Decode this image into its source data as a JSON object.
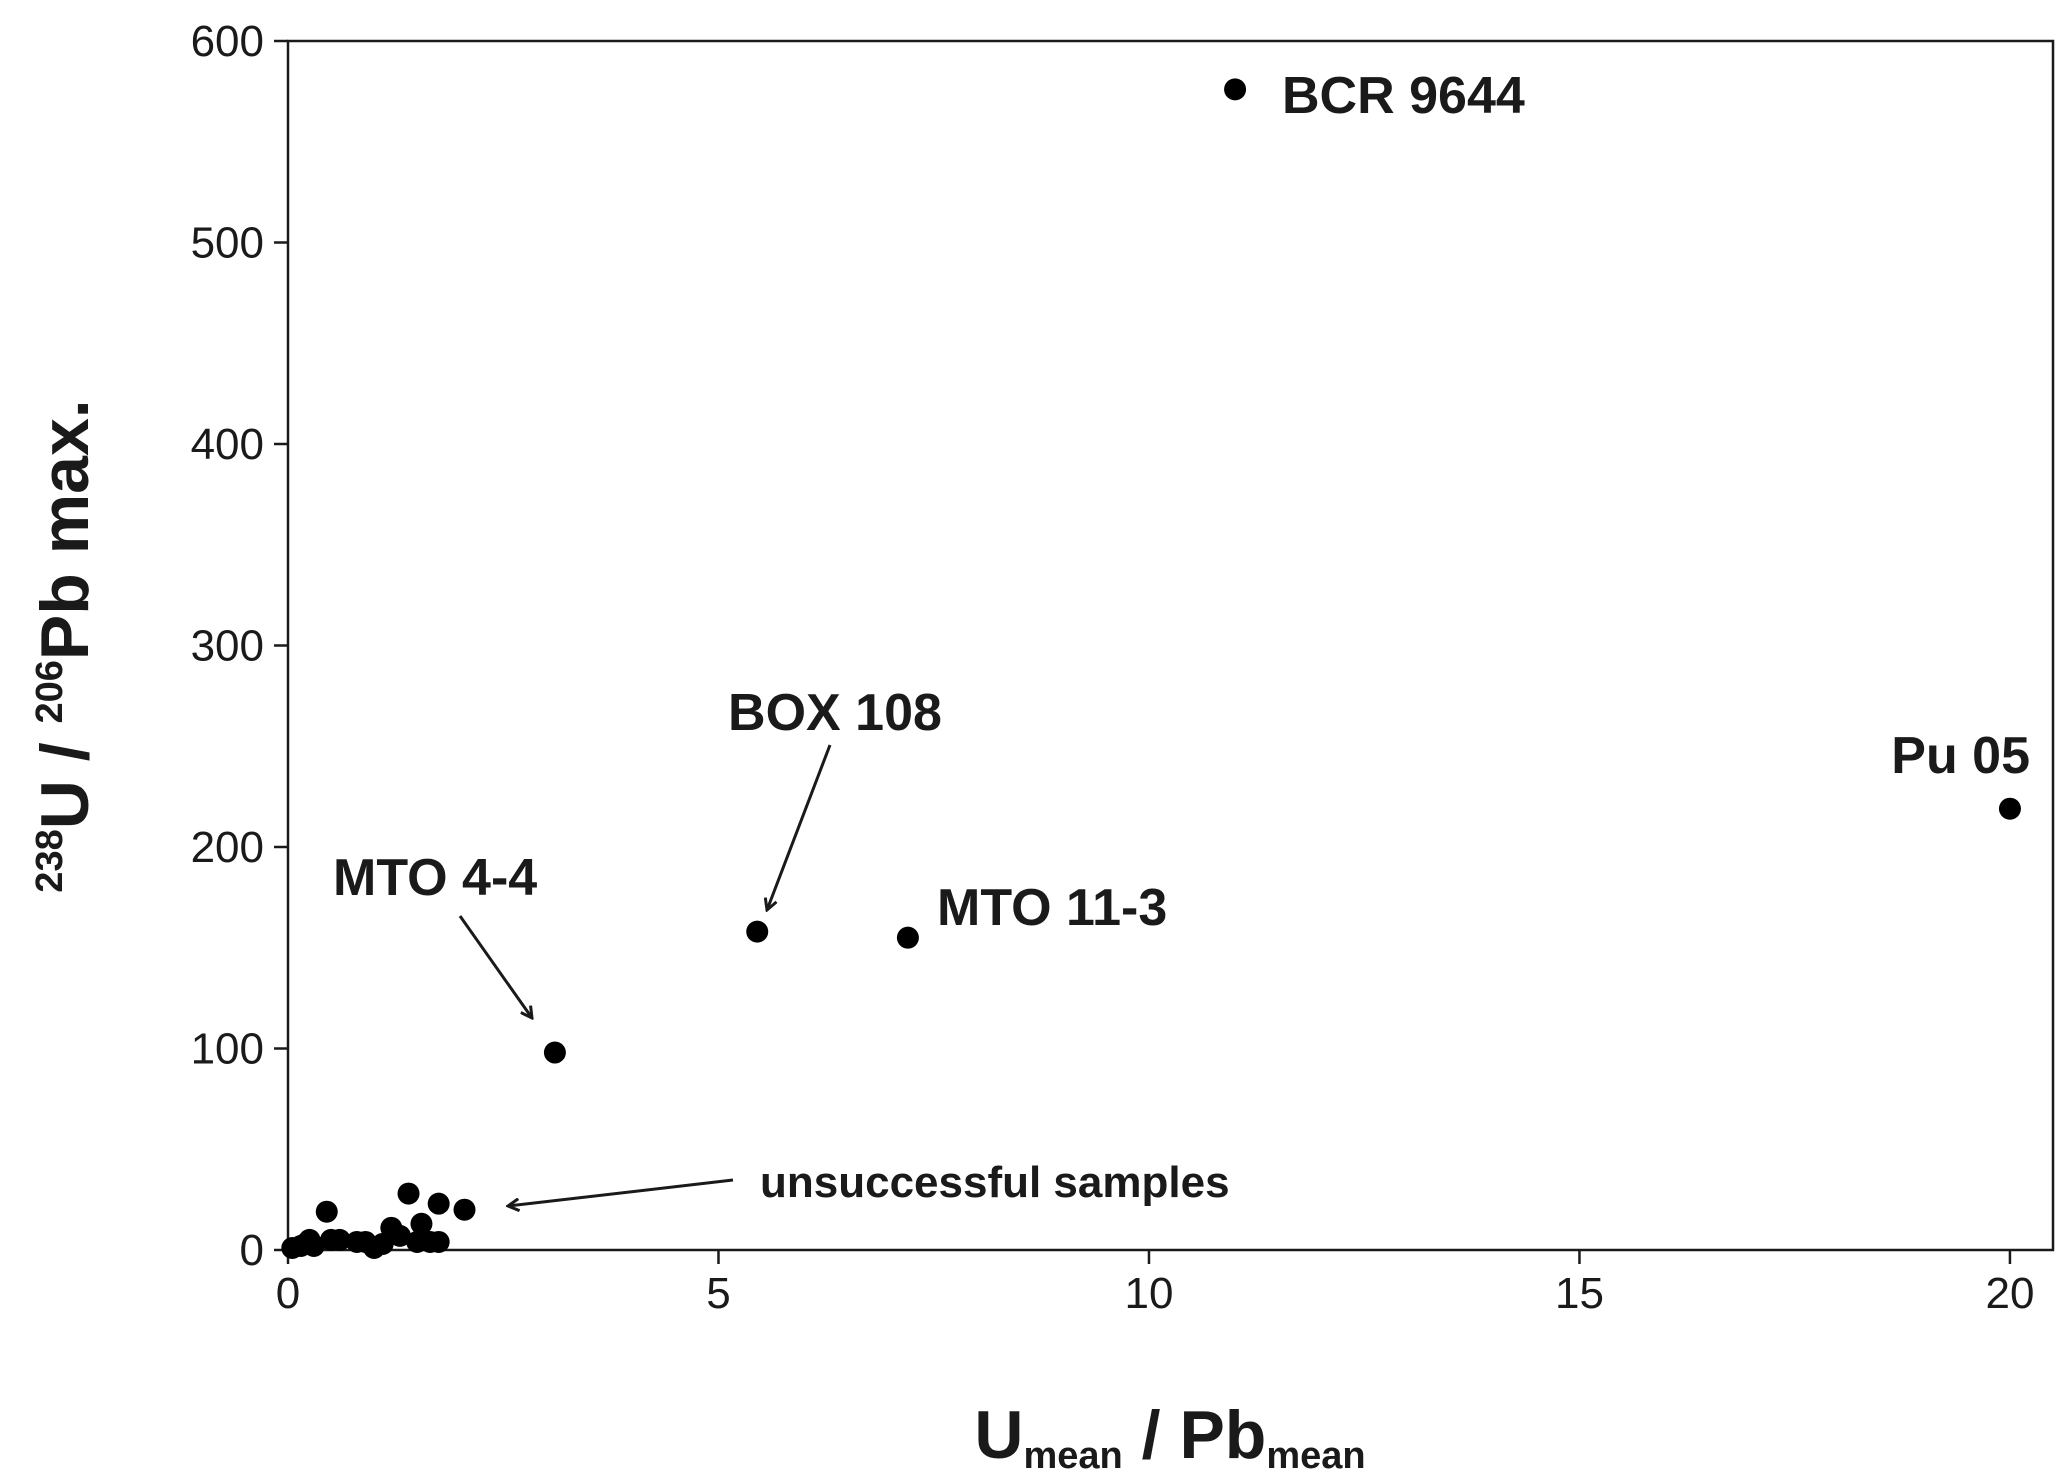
{
  "chart_data": {
    "type": "scatter",
    "xlabel": {
      "main1": "U",
      "sub1": "mean",
      "sep": " / ",
      "main2": "Pb",
      "sub2": "mean"
    },
    "ylabel": {
      "sup1": "238",
      "main1": "U / ",
      "sup2": "206",
      "main2": "Pb max."
    },
    "xlim": [
      0,
      20.5
    ],
    "ylim": [
      0,
      600
    ],
    "xticks": [
      "0",
      "5",
      "10",
      "15",
      "20"
    ],
    "yticks": [
      "0",
      "100",
      "200",
      "300",
      "400",
      "500",
      "600"
    ],
    "grid": false,
    "marker_color": "#000000",
    "points": [
      {
        "x": 11.0,
        "y": 576,
        "label": "BCR 9644"
      },
      {
        "x": 20.0,
        "y": 219,
        "label": "Pu 05"
      },
      {
        "x": 5.45,
        "y": 158,
        "label": "BOX 108"
      },
      {
        "x": 7.2,
        "y": 155,
        "label": "MTO 11-3"
      },
      {
        "x": 3.1,
        "y": 98,
        "label": "MTO 4-4"
      },
      {
        "x": 0.05,
        "y": 1
      },
      {
        "x": 0.15,
        "y": 2
      },
      {
        "x": 0.2,
        "y": 3
      },
      {
        "x": 0.25,
        "y": 5
      },
      {
        "x": 0.3,
        "y": 2
      },
      {
        "x": 0.45,
        "y": 19
      },
      {
        "x": 0.5,
        "y": 5
      },
      {
        "x": 0.6,
        "y": 5
      },
      {
        "x": 0.8,
        "y": 4
      },
      {
        "x": 0.9,
        "y": 4
      },
      {
        "x": 1.0,
        "y": 1
      },
      {
        "x": 1.1,
        "y": 3
      },
      {
        "x": 1.2,
        "y": 11
      },
      {
        "x": 1.3,
        "y": 7
      },
      {
        "x": 1.4,
        "y": 28
      },
      {
        "x": 1.5,
        "y": 4
      },
      {
        "x": 1.55,
        "y": 13
      },
      {
        "x": 1.65,
        "y": 4
      },
      {
        "x": 1.75,
        "y": 23
      },
      {
        "x": 1.75,
        "y": 4
      },
      {
        "x": 2.05,
        "y": 20
      }
    ],
    "annotations": [
      {
        "text": "BCR 9644"
      },
      {
        "text": "Pu 05"
      },
      {
        "text": "BOX 108"
      },
      {
        "text": "MTO 11-3"
      },
      {
        "text": "MTO 4-4"
      },
      {
        "text": "unsuccessful samples"
      }
    ]
  }
}
